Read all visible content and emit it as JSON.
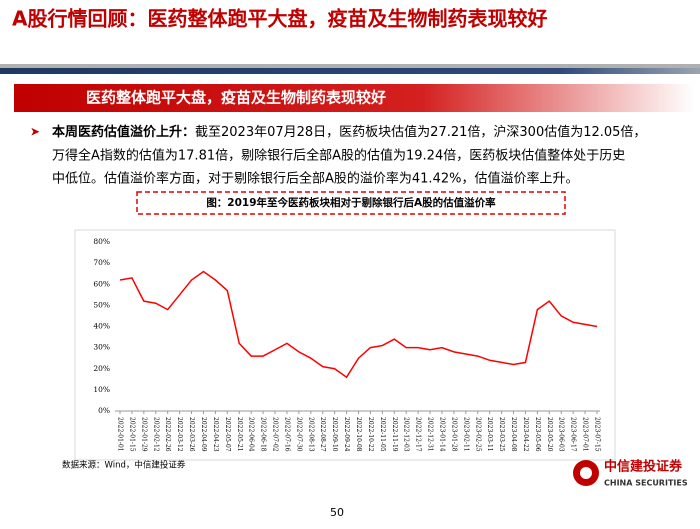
{
  "header": {
    "title": "A股行情回顾：医药整体跑平大盘，疫苗及生物制药表现较好"
  },
  "banner": "医药整体跑平大盘，疫苗及生物制药表现较好",
  "bullet": {
    "lead": "本周医药估值溢价上升：",
    "lines": [
      "截至2023年07月28日，医药板块估值为27.21倍，沪深300估值为12.05倍，",
      "万得全A指数的估值为17.81倍，剔除银行后全部A股的估值为19.24倍，医药板块估值整体处于历史",
      "中低位。估值溢价率方面，对于剔除银行后全部A股的溢价率为41.42%，估值溢价率上升。"
    ]
  },
  "chart_data": {
    "type": "line",
    "title": "图：2019年至今医药板块相对于剔除银行后A股的估值溢价率",
    "categories": [
      "2022-01-01",
      "2022-01-15",
      "2022-01-29",
      "2022-02-12",
      "2022-02-26",
      "2022-03-12",
      "2022-03-26",
      "2022-04-09",
      "2022-04-23",
      "2022-05-07",
      "2022-05-21",
      "2022-06-04",
      "2022-06-18",
      "2022-07-02",
      "2022-07-16",
      "2022-07-30",
      "2022-08-13",
      "2022-08-27",
      "2022-09-10",
      "2022-09-24",
      "2022-10-08",
      "2022-10-22",
      "2022-11-05",
      "2022-11-19",
      "2022-12-03",
      "2022-12-17",
      "2022-12-31",
      "2023-01-14",
      "2023-01-28",
      "2023-02-11",
      "2023-02-25",
      "2023-03-11",
      "2023-03-25",
      "2023-04-08",
      "2023-04-22",
      "2023-05-06",
      "2023-05-20",
      "2023-06-03",
      "2023-06-17",
      "2023-07-01",
      "2023-07-15"
    ],
    "series": [
      {
        "name": "估值溢价率",
        "color": "#ff0000",
        "values": [
          62,
          63,
          52,
          51,
          48,
          55,
          62,
          66,
          62,
          57,
          32,
          26,
          26,
          29,
          32,
          28,
          25,
          21,
          20,
          16,
          25,
          30,
          31,
          34,
          30,
          30,
          29,
          30,
          28,
          27,
          26,
          24,
          23,
          22,
          23,
          48,
          52,
          45,
          42,
          41,
          40
        ]
      }
    ],
    "ylim": [
      0,
      80
    ],
    "yticks": [
      {
        "value": 0,
        "label": "0%"
      },
      {
        "value": 10,
        "label": "10%"
      },
      {
        "value": 20,
        "label": "20%"
      },
      {
        "value": 30,
        "label": "30%"
      },
      {
        "value": 40,
        "label": "40%"
      },
      {
        "value": 50,
        "label": "50%"
      },
      {
        "value": 60,
        "label": "60%"
      },
      {
        "value": 70,
        "label": "70%"
      },
      {
        "value": 80,
        "label": "80%"
      }
    ],
    "grid": false
  },
  "source": "数据来源：Wind，中信建投证券",
  "page": "50",
  "logo": {
    "name": "中信建投证券",
    "english": "CHINA SECURITIES"
  }
}
